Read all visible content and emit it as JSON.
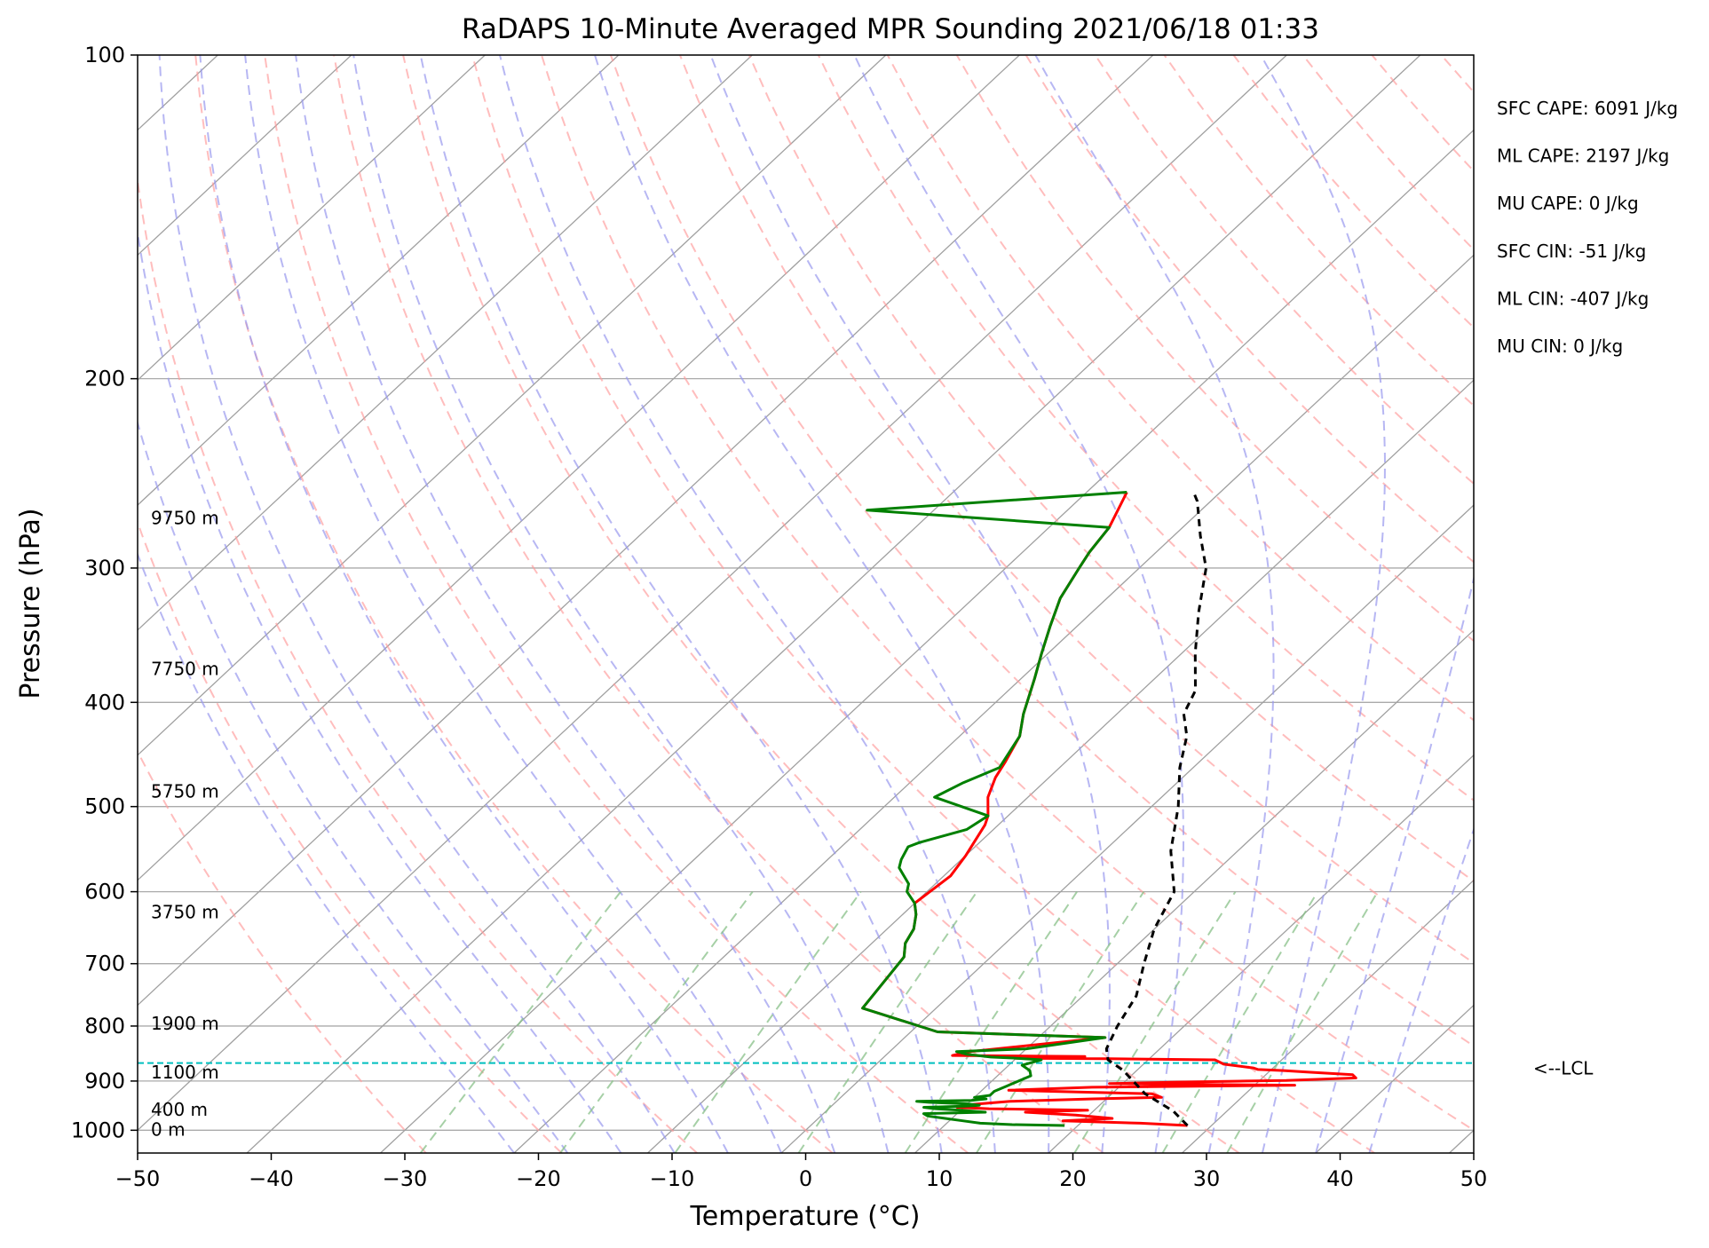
{
  "chart_data": {
    "type": "line",
    "title": "RaDAPS 10-Minute Averaged MPR Sounding 2021/06/18 01:33",
    "xlabel": "Temperature (°C)",
    "ylabel": "Pressure (hPa)",
    "xlim": [
      -50,
      50
    ],
    "ylim": [
      1050,
      100
    ],
    "y_scale": "log",
    "skew_deg_per_decade": 86,
    "x_ticks": [
      -50,
      -40,
      -30,
      -20,
      -10,
      0,
      10,
      20,
      30,
      40,
      50
    ],
    "x_tick_labels": [
      "−50",
      "−40",
      "−30",
      "−20",
      "−10",
      "0",
      "10",
      "20",
      "30",
      "40",
      "50"
    ],
    "y_ticks": [
      100,
      200,
      300,
      400,
      500,
      600,
      700,
      800,
      900,
      1000
    ],
    "y_tick_labels": [
      "100",
      "200",
      "300",
      "400",
      "500",
      "600",
      "700",
      "800",
      "900",
      "1000"
    ],
    "grid": true,
    "colors": {
      "temperature": "#ff0000",
      "dewpoint": "#008000",
      "parcel": "#000000",
      "lcl": "#00bfbf",
      "skew_isotherm": "#a0a0a0",
      "dry_adiabat": "#ff9999",
      "moist_adiabat": "#9999ee",
      "mixing_ratio": "#88c088"
    },
    "series": [
      {
        "key": "temperature",
        "points": [
          [
            28.2,
            990
          ],
          [
            24.5,
            985
          ],
          [
            18.5,
            980
          ],
          [
            22,
            975
          ],
          [
            19,
            968
          ],
          [
            15,
            962
          ],
          [
            19.5,
            958
          ],
          [
            12,
            955
          ],
          [
            9.5,
            952
          ],
          [
            10.5,
            946
          ],
          [
            13,
            940
          ],
          [
            19,
            935
          ],
          [
            24,
            932
          ],
          [
            23,
            925
          ],
          [
            12,
            918
          ],
          [
            18,
            912
          ],
          [
            33,
            908
          ],
          [
            19,
            905
          ],
          [
            24,
            902
          ],
          [
            29,
            900
          ],
          [
            32,
            899
          ],
          [
            37,
            894
          ],
          [
            36.5,
            888
          ],
          [
            33,
            883
          ],
          [
            31,
            880
          ],
          [
            29,
            878
          ],
          [
            28.5,
            875
          ],
          [
            26,
            868
          ],
          [
            25,
            860
          ],
          [
            17,
            858
          ],
          [
            10,
            857
          ],
          [
            11,
            856
          ],
          [
            15,
            854
          ],
          [
            5,
            852
          ],
          [
            6,
            845
          ],
          [
            15,
            820
          ],
          [
            2,
            810
          ],
          [
            -5.5,
            770
          ],
          [
            -6.5,
            690
          ],
          [
            -7.5,
            670
          ],
          [
            -8,
            650
          ],
          [
            -9,
            630
          ],
          [
            -10,
            615
          ],
          [
            -9.5,
            580
          ],
          [
            -10,
            555
          ],
          [
            -11,
            520
          ],
          [
            -11.5,
            510
          ],
          [
            -13,
            490
          ],
          [
            -14,
            470
          ],
          [
            -14.5,
            455
          ],
          [
            -15.5,
            430
          ],
          [
            -17,
            410
          ],
          [
            -19,
            380
          ],
          [
            -20.5,
            360
          ],
          [
            -22,
            340
          ],
          [
            -23.5,
            320
          ],
          [
            -24.5,
            300
          ],
          [
            -25,
            290
          ],
          [
            -25.5,
            275
          ],
          [
            -27,
            255
          ]
        ]
      },
      {
        "key": "dewpoint",
        "points": [
          [
            19,
            990
          ],
          [
            15,
            988
          ],
          [
            12.5,
            985
          ],
          [
            11,
            980
          ],
          [
            9.5,
            975
          ],
          [
            8,
            970
          ],
          [
            7.5,
            965
          ],
          [
            12,
            962
          ],
          [
            10,
            958
          ],
          [
            8,
            955
          ],
          [
            7,
            952
          ],
          [
            10,
            950
          ],
          [
            11,
            948
          ],
          [
            10,
            945
          ],
          [
            7,
            942
          ],
          [
            6,
            940
          ],
          [
            10,
            938
          ],
          [
            11,
            935
          ],
          [
            10,
            932
          ],
          [
            11,
            928
          ],
          [
            11,
            925
          ],
          [
            11,
            920
          ],
          [
            11.5,
            910
          ],
          [
            12,
            900
          ],
          [
            12.5,
            890
          ],
          [
            12,
            880
          ],
          [
            11,
            870
          ],
          [
            12,
            860
          ],
          [
            10,
            857
          ],
          [
            8,
            855
          ],
          [
            6,
            850
          ],
          [
            5,
            845
          ],
          [
            10,
            840
          ],
          [
            15,
            820
          ],
          [
            2,
            810
          ],
          [
            -5.5,
            770
          ],
          [
            -6.5,
            690
          ],
          [
            -7.5,
            670
          ],
          [
            -8,
            650
          ],
          [
            -9,
            630
          ],
          [
            -10,
            615
          ],
          [
            -11.5,
            600
          ],
          [
            -12,
            590
          ],
          [
            -14,
            570
          ],
          [
            -14.5,
            560
          ],
          [
            -15,
            545
          ],
          [
            -14.5,
            540
          ],
          [
            -12,
            525
          ],
          [
            -11.5,
            510
          ],
          [
            -17,
            490
          ],
          [
            -16,
            475
          ],
          [
            -14.5,
            460
          ],
          [
            -15.5,
            430
          ],
          [
            -17,
            410
          ],
          [
            -19,
            380
          ],
          [
            -20.5,
            360
          ],
          [
            -22,
            340
          ],
          [
            -23.5,
            320
          ],
          [
            -24.5,
            300
          ],
          [
            -25,
            290
          ],
          [
            -25.5,
            275
          ],
          [
            -45,
            265
          ],
          [
            -27,
            255
          ]
        ]
      },
      {
        "key": "parcel",
        "points": [
          [
            28.2,
            990
          ],
          [
            26,
            960
          ],
          [
            22.5,
            925
          ],
          [
            19,
            880
          ],
          [
            17,
            860
          ],
          [
            16,
            840
          ],
          [
            15,
            800
          ],
          [
            14,
            750
          ],
          [
            12,
            700
          ],
          [
            10,
            650
          ],
          [
            8.5,
            600
          ],
          [
            5,
            550
          ],
          [
            2,
            500
          ],
          [
            -1,
            460
          ],
          [
            -3,
            430
          ],
          [
            -5,
            410
          ],
          [
            -6,
            390
          ],
          [
            -9,
            360
          ],
          [
            -12,
            330
          ],
          [
            -15,
            300
          ],
          [
            -18,
            280
          ],
          [
            -21,
            260
          ],
          [
            -22,
            255
          ]
        ]
      }
    ],
    "lcl_pressure": 866,
    "lcl_label": "<--LCL",
    "height_labels": [
      {
        "text": "9750 m",
        "p": 270
      },
      {
        "text": "7750 m",
        "p": 373
      },
      {
        "text": "5750 m",
        "p": 485
      },
      {
        "text": "3750 m",
        "p": 628
      },
      {
        "text": "1900 m",
        "p": 797
      },
      {
        "text": "1100 m",
        "p": 885
      },
      {
        "text": "400 m",
        "p": 958
      },
      {
        "text": "0 m",
        "p": 1000
      }
    ],
    "annotations": [
      "SFC CAPE: 6091 J/kg",
      "ML CAPE: 2197 J/kg",
      "MU CAPE: 0 J/kg",
      "SFC CIN: -51 J/kg",
      "ML CIN: -407 J/kg",
      "MU CIN: 0 J/kg"
    ]
  }
}
